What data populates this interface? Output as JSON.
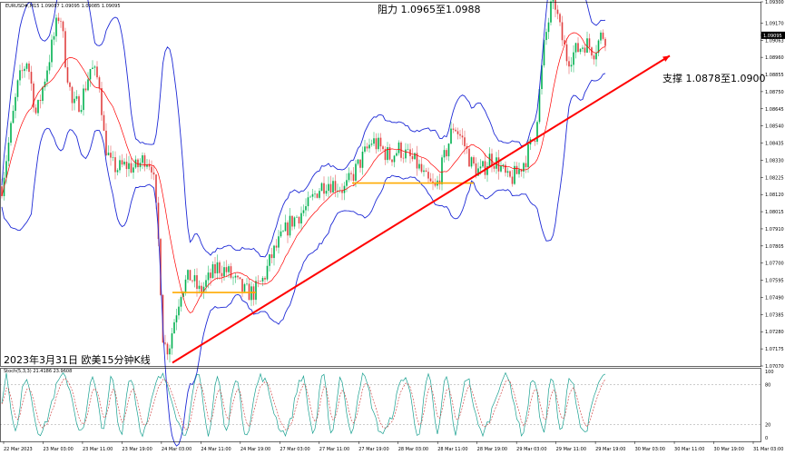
{
  "chart_data": {
    "type": "candlestick",
    "symbol_header": "EURUSD#,M15",
    "ohlc_header": "1.09087 1.09095 1.09085 1.09095",
    "price_axis": {
      "ticks": [
        "1.09300",
        "1.09170",
        "1.09095",
        "1.09063",
        "1.08960",
        "1.08855",
        "1.08750",
        "1.08645",
        "1.08540",
        "1.08435",
        "1.08330",
        "1.08225",
        "1.08120",
        "1.08015",
        "1.07910",
        "1.07805",
        "1.07700",
        "1.07595",
        "1.07490",
        "1.07385",
        "1.07280",
        "1.07175",
        "1.07070"
      ],
      "ylim": [
        1.0707,
        1.093
      ],
      "current_price": 1.09095
    },
    "time_axis": {
      "ticks": [
        "22 Mar 2023",
        "23 Mar 03:00",
        "23 Mar 11:00",
        "23 Mar 19:00",
        "24 Mar 03:00",
        "24 Mar 11:00",
        "24 Mar 19:00",
        "27 Mar 03:00",
        "27 Mar 11:00",
        "27 Mar 19:00",
        "28 Mar 03:00",
        "28 Mar 11:00",
        "28 Mar 19:00",
        "29 Mar 03:00",
        "29 Mar 11:00",
        "29 Mar 19:00",
        "30 Mar 03:00",
        "30 Mar 11:00",
        "30 Mar 19:00",
        "31 Mar 03:00"
      ]
    },
    "price_path": [
      [
        0,
        1.081
      ],
      [
        10,
        1.0845
      ],
      [
        20,
        1.088
      ],
      [
        30,
        1.0895
      ],
      [
        40,
        1.086
      ],
      [
        50,
        1.0885
      ],
      [
        60,
        1.091
      ],
      [
        66,
        1.0925
      ],
      [
        72,
        1.0895
      ],
      [
        80,
        1.0865
      ],
      [
        90,
        1.087
      ],
      [
        100,
        1.089
      ],
      [
        110,
        1.088
      ],
      [
        115,
        1.0845
      ],
      [
        122,
        1.083
      ],
      [
        130,
        1.0828
      ],
      [
        140,
        1.083
      ],
      [
        150,
        1.0828
      ],
      [
        160,
        1.0835
      ],
      [
        168,
        1.083
      ],
      [
        175,
        1.078
      ],
      [
        180,
        1.072
      ],
      [
        186,
        1.0718
      ],
      [
        192,
        1.0735
      ],
      [
        200,
        1.0755
      ],
      [
        210,
        1.0762
      ],
      [
        220,
        1.0752
      ],
      [
        230,
        1.076
      ],
      [
        240,
        1.0768
      ],
      [
        250,
        1.0765
      ],
      [
        260,
        1.0758
      ],
      [
        270,
        1.0752
      ],
      [
        280,
        1.0752
      ],
      [
        290,
        1.076
      ],
      [
        300,
        1.0775
      ],
      [
        310,
        1.0785
      ],
      [
        320,
        1.0795
      ],
      [
        330,
        1.08
      ],
      [
        340,
        1.0805
      ],
      [
        350,
        1.0815
      ],
      [
        360,
        1.082
      ],
      [
        370,
        1.0818
      ],
      [
        380,
        1.0815
      ],
      [
        390,
        1.0825
      ],
      [
        400,
        1.0835
      ],
      [
        410,
        1.0845
      ],
      [
        420,
        1.084
      ],
      [
        430,
        1.0835
      ],
      [
        440,
        1.084
      ],
      [
        450,
        1.0835
      ],
      [
        460,
        1.083
      ],
      [
        470,
        1.082
      ],
      [
        480,
        1.0815
      ],
      [
        490,
        1.0835
      ],
      [
        500,
        1.0855
      ],
      [
        510,
        1.0845
      ],
      [
        520,
        1.083
      ],
      [
        530,
        1.0825
      ],
      [
        540,
        1.0835
      ],
      [
        550,
        1.083
      ],
      [
        560,
        1.082
      ],
      [
        570,
        1.0825
      ],
      [
        580,
        1.0835
      ],
      [
        590,
        1.085
      ],
      [
        600,
        1.0905
      ],
      [
        610,
        1.0935
      ],
      [
        616,
        1.0915
      ],
      [
        625,
        1.0895
      ],
      [
        635,
        1.09
      ],
      [
        645,
        1.0905
      ],
      [
        655,
        1.09
      ],
      [
        663,
        1.091
      ],
      [
        670,
        1.0908
      ]
    ],
    "annotations": {
      "resistance": "阻力 1.0965至1.0988",
      "support": "支撑 1.0878至1.0900",
      "caption": "2023年3月31日 欧美15分钟K线"
    },
    "orange_levels": [
      {
        "from_x": 190,
        "to_x": 282,
        "price": 1.0752
      },
      {
        "from_x": 388,
        "to_x": 522,
        "price": 1.0819
      }
    ],
    "red_trendline": {
      "from": [
        190,
        1.0709
      ],
      "to": [
        738,
        1.0897
      ]
    },
    "stochastic": {
      "label": "Stoch(5,3,3) 21.4186 23.9608",
      "ticks": [
        "100",
        "80",
        "20",
        "0"
      ],
      "ylim": [
        0,
        100
      ]
    },
    "colors": {
      "bullish": "#00b050",
      "bearish": "#e04040",
      "bollinger": "#1e2ad6",
      "ma": "#ff0000",
      "orange": "#ffaa00",
      "trend": "#ff0000",
      "stoch": "#18a090"
    }
  }
}
